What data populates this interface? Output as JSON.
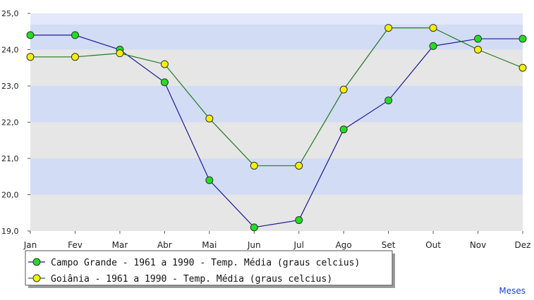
{
  "chart_data": {
    "type": "line",
    "title": "",
    "xlabel": "Meses",
    "ylabel": "",
    "x": [
      "Jan",
      "Fev",
      "Mar",
      "Abr",
      "Mai",
      "Jun",
      "Jul",
      "Ago",
      "Set",
      "Out",
      "Nov",
      "Dez"
    ],
    "ylim": [
      19.0,
      25.0
    ],
    "y_ticks": [
      "19,0",
      "20,0",
      "21,0",
      "22,0",
      "23,0",
      "24,0",
      "25,0"
    ],
    "grid": true,
    "legend_position": "bottom-left",
    "series": [
      {
        "name": "Campo Grande - 1961 a 1990 - Temp. Média (graus celcius)",
        "values": [
          24.4,
          24.4,
          24.0,
          23.1,
          20.4,
          19.1,
          19.3,
          21.8,
          22.6,
          24.1,
          24.3,
          24.3
        ],
        "line_color": "#1b1b8f",
        "marker_color": "#22dd22"
      },
      {
        "name": "Goiânia - 1961 a 1990 - Temp. Média (graus celcius)",
        "values": [
          23.8,
          23.8,
          23.9,
          23.6,
          22.1,
          20.8,
          20.8,
          22.9,
          24.6,
          24.6,
          24.0,
          23.5
        ],
        "line_color": "#1e7a1e",
        "marker_color": "#f5f000"
      }
    ],
    "band_colors": [
      "#d3dcf5",
      "#e6e6e6"
    ]
  }
}
